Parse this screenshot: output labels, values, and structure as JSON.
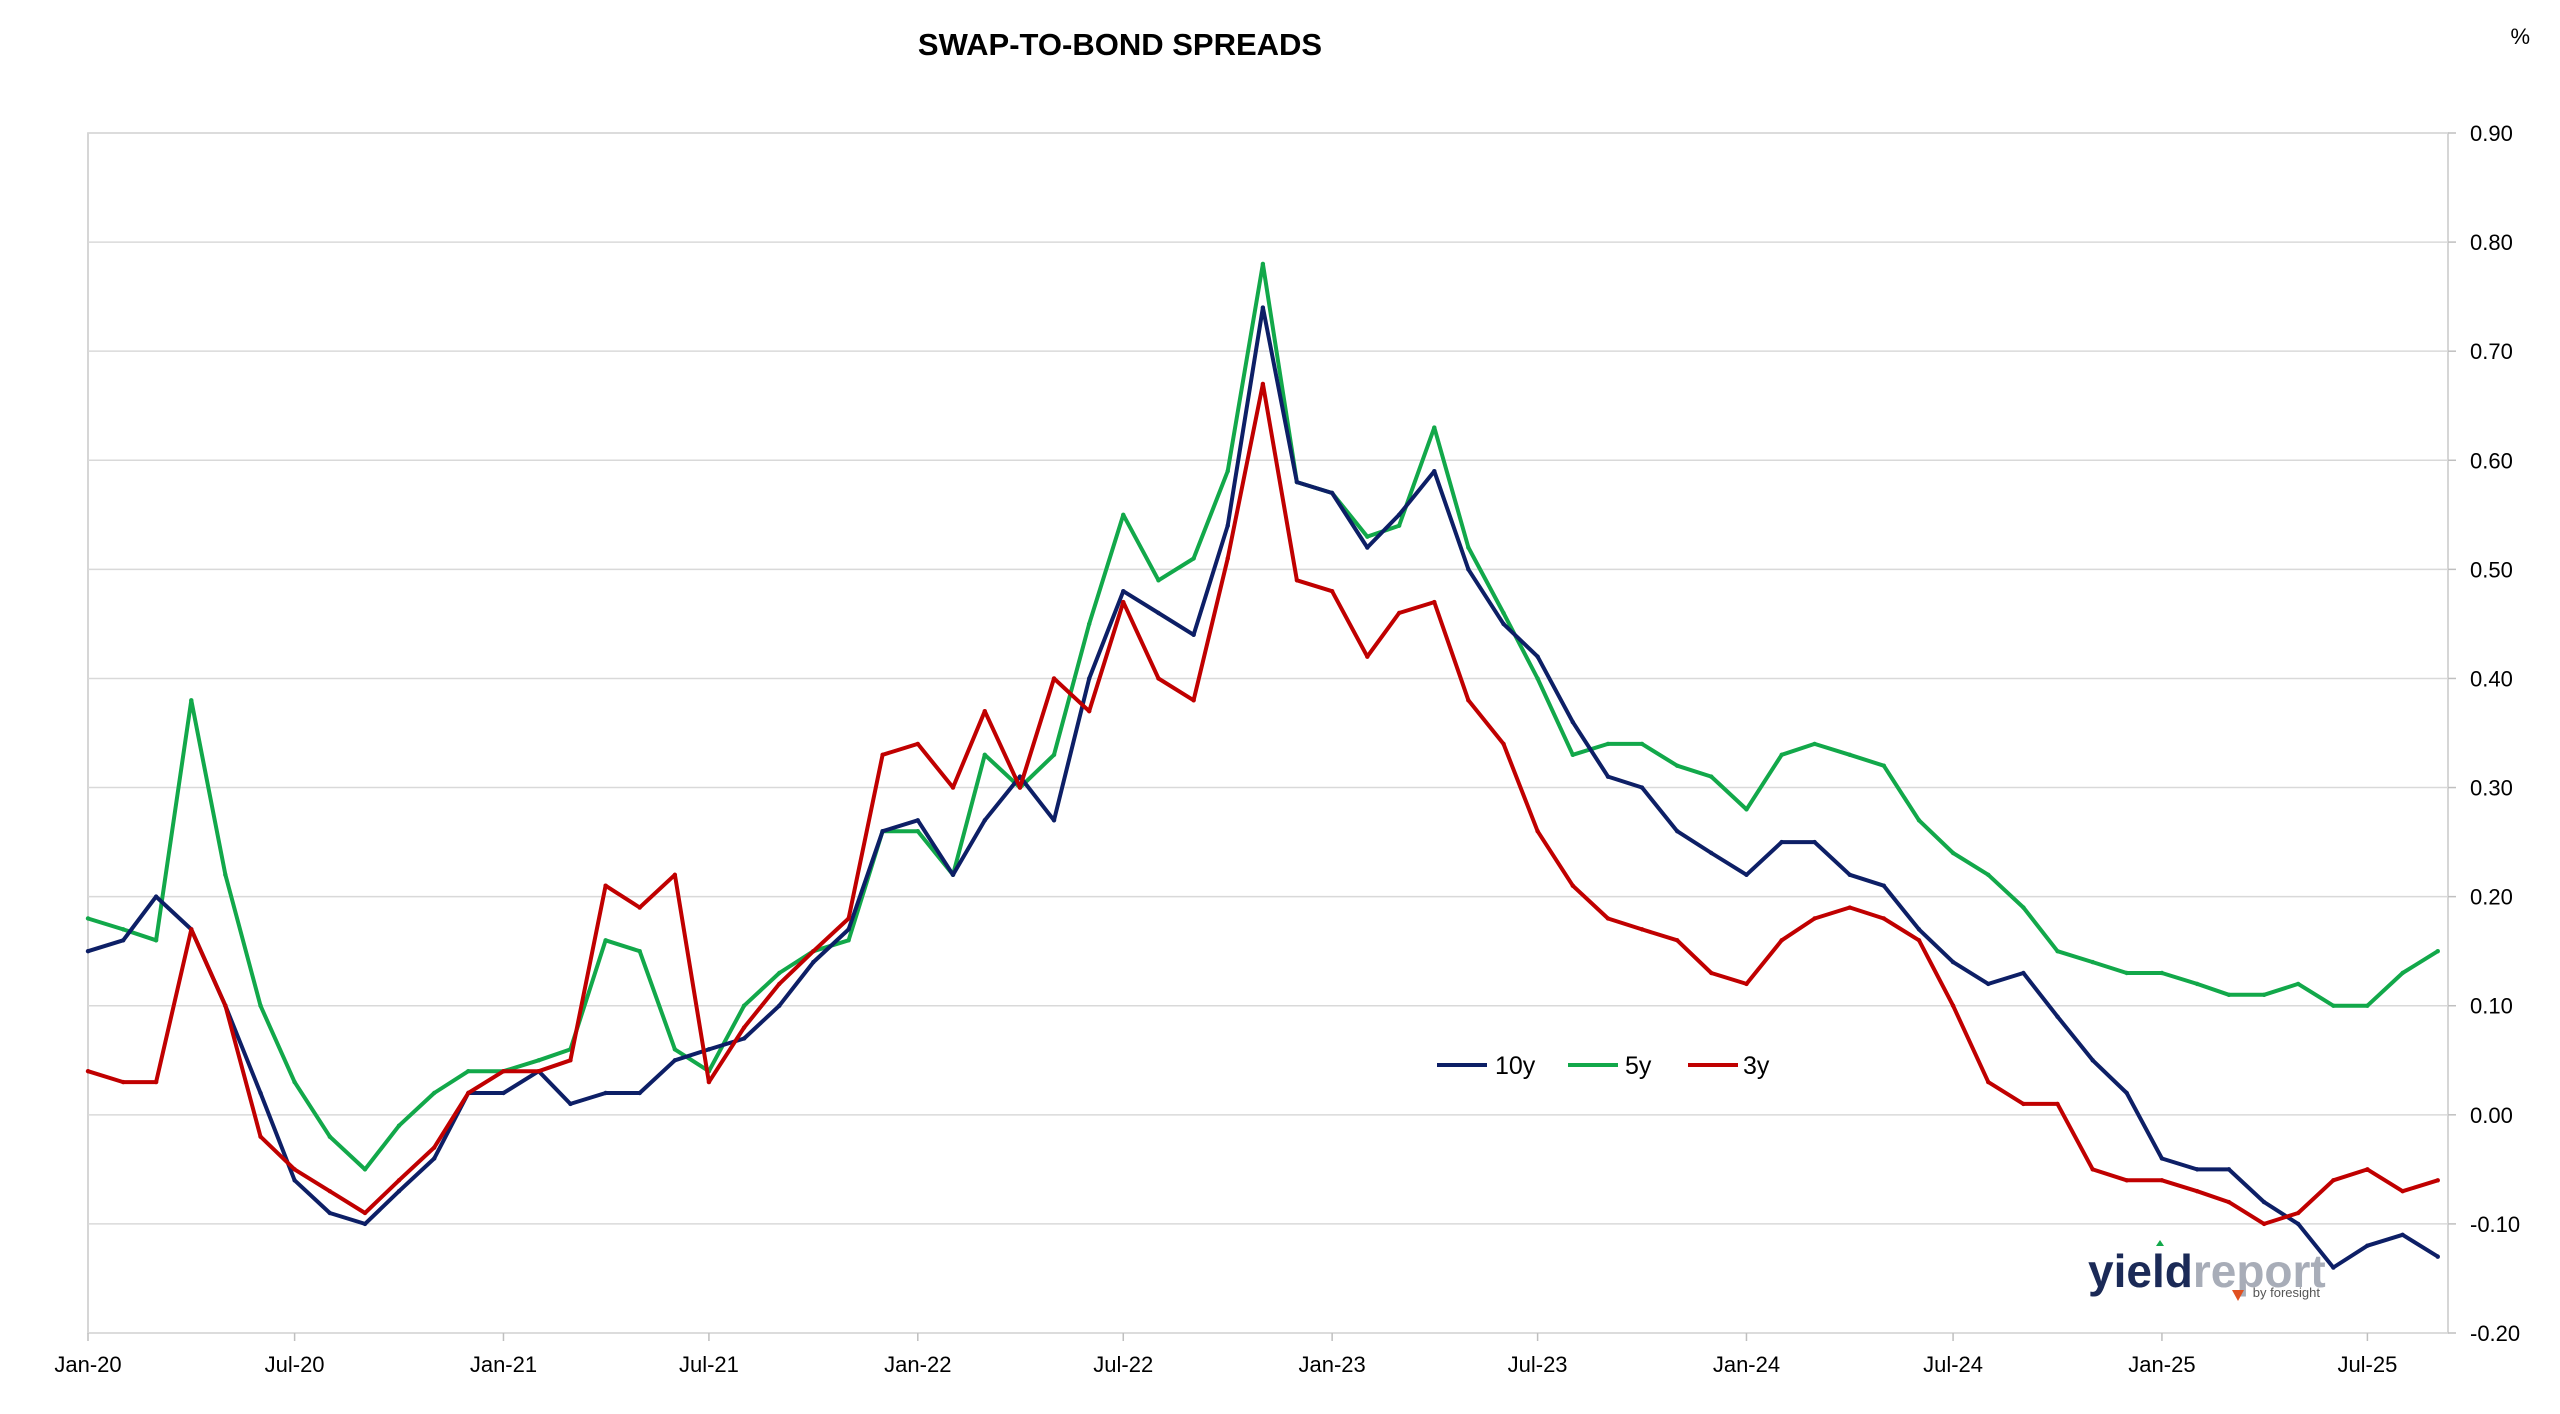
{
  "chart_data": {
    "type": "line",
    "title": "SWAP-TO-BOND SPREADS",
    "unit": "%",
    "xlabel": "",
    "ylabel": "",
    "x_tick_labels": [
      "Jan-20",
      "Jul-20",
      "Jan-21",
      "Jul-21",
      "Jan-22",
      "Jul-22",
      "Jan-23",
      "Jul-23",
      "Jan-24",
      "Jul-24",
      "Jan-25",
      "Jul-25"
    ],
    "y_tick_labels": [
      "0.90",
      "0.80",
      "0.70",
      "0.60",
      "0.50",
      "0.40",
      "0.30",
      "0.20",
      "0.10",
      "0.00",
      "-0.10",
      "-0.20"
    ],
    "xlim": [
      "2020-01-01",
      "2025-09-10"
    ],
    "ylim": [
      -0.2,
      0.9
    ],
    "y_axis_side": "right",
    "grid": "horizontal",
    "legend_position": "center-right",
    "x": [
      "2020-01-01",
      "2020-02-01",
      "2020-03-01",
      "2020-04-01",
      "2020-05-01",
      "2020-06-01",
      "2020-07-01",
      "2020-08-01",
      "2020-09-01",
      "2020-10-01",
      "2020-11-01",
      "2020-12-01",
      "2021-01-01",
      "2021-02-01",
      "2021-03-01",
      "2021-04-01",
      "2021-05-01",
      "2021-06-01",
      "2021-07-01",
      "2021-08-01",
      "2021-09-01",
      "2021-10-01",
      "2021-11-01",
      "2021-12-01",
      "2022-01-01",
      "2022-02-01",
      "2022-03-01",
      "2022-04-01",
      "2022-05-01",
      "2022-06-01",
      "2022-07-01",
      "2022-08-01",
      "2022-09-01",
      "2022-10-01",
      "2022-11-01",
      "2022-12-01",
      "2023-01-01",
      "2023-02-01",
      "2023-03-01",
      "2023-04-01",
      "2023-05-01",
      "2023-06-01",
      "2023-07-01",
      "2023-08-01",
      "2023-09-01",
      "2023-10-01",
      "2023-11-01",
      "2023-12-01",
      "2024-01-01",
      "2024-02-01",
      "2024-03-01",
      "2024-04-01",
      "2024-05-01",
      "2024-06-01",
      "2024-07-01",
      "2024-08-01",
      "2024-09-01",
      "2024-10-01",
      "2024-11-01",
      "2024-12-01",
      "2025-01-01",
      "2025-02-01",
      "2025-03-01",
      "2025-04-01",
      "2025-05-01",
      "2025-06-01",
      "2025-07-01",
      "2025-08-01",
      "2025-09-01"
    ],
    "series": [
      {
        "name": "10y",
        "color": "#0d1f66",
        "values": [
          0.15,
          0.16,
          0.2,
          0.17,
          0.1,
          0.02,
          -0.06,
          -0.09,
          -0.1,
          -0.07,
          -0.04,
          0.02,
          0.02,
          0.04,
          0.01,
          0.02,
          0.02,
          0.05,
          0.06,
          0.07,
          0.1,
          0.14,
          0.17,
          0.26,
          0.27,
          0.22,
          0.27,
          0.31,
          0.27,
          0.4,
          0.48,
          0.46,
          0.44,
          0.54,
          0.74,
          0.58,
          0.57,
          0.52,
          0.55,
          0.59,
          0.5,
          0.45,
          0.42,
          0.36,
          0.31,
          0.3,
          0.26,
          0.24,
          0.22,
          0.25,
          0.25,
          0.22,
          0.21,
          0.17,
          0.14,
          0.12,
          0.13,
          0.09,
          0.05,
          0.02,
          -0.04,
          -0.05,
          -0.05,
          -0.08,
          -0.1,
          -0.14,
          -0.12,
          -0.11,
          -0.13
        ]
      },
      {
        "name": "5y",
        "color": "#12a84a",
        "values": [
          0.18,
          0.17,
          0.16,
          0.38,
          0.22,
          0.1,
          0.03,
          -0.02,
          -0.05,
          -0.01,
          0.02,
          0.04,
          0.04,
          0.05,
          0.06,
          0.16,
          0.15,
          0.06,
          0.04,
          0.1,
          0.13,
          0.15,
          0.16,
          0.26,
          0.26,
          0.22,
          0.33,
          0.3,
          0.33,
          0.45,
          0.55,
          0.49,
          0.51,
          0.59,
          0.78,
          0.58,
          0.57,
          0.53,
          0.54,
          0.63,
          0.52,
          0.46,
          0.4,
          0.33,
          0.34,
          0.34,
          0.32,
          0.31,
          0.28,
          0.33,
          0.34,
          0.33,
          0.32,
          0.27,
          0.24,
          0.22,
          0.19,
          0.15,
          0.14,
          0.13,
          0.13,
          0.12,
          0.11,
          0.11,
          0.12,
          0.1,
          0.1,
          0.13,
          0.15
        ]
      },
      {
        "name": "3y",
        "color": "#c00000",
        "values": [
          0.04,
          0.03,
          0.03,
          0.17,
          0.1,
          -0.02,
          -0.05,
          -0.07,
          -0.09,
          -0.06,
          -0.03,
          0.02,
          0.04,
          0.04,
          0.05,
          0.21,
          0.19,
          0.22,
          0.03,
          0.08,
          0.12,
          0.15,
          0.18,
          0.33,
          0.34,
          0.3,
          0.37,
          0.3,
          0.4,
          0.37,
          0.47,
          0.4,
          0.38,
          0.51,
          0.67,
          0.49,
          0.48,
          0.42,
          0.46,
          0.47,
          0.38,
          0.34,
          0.26,
          0.21,
          0.18,
          0.17,
          0.16,
          0.13,
          0.12,
          0.16,
          0.18,
          0.19,
          0.18,
          0.16,
          0.1,
          0.03,
          0.01,
          0.01,
          -0.05,
          -0.06,
          -0.06,
          -0.07,
          -0.08,
          -0.1,
          -0.09,
          -0.06,
          -0.05,
          -0.07,
          -0.06
        ]
      }
    ]
  },
  "logo": {
    "text_dark": "yield",
    "text_light": "report",
    "tagline": "by foresight"
  }
}
